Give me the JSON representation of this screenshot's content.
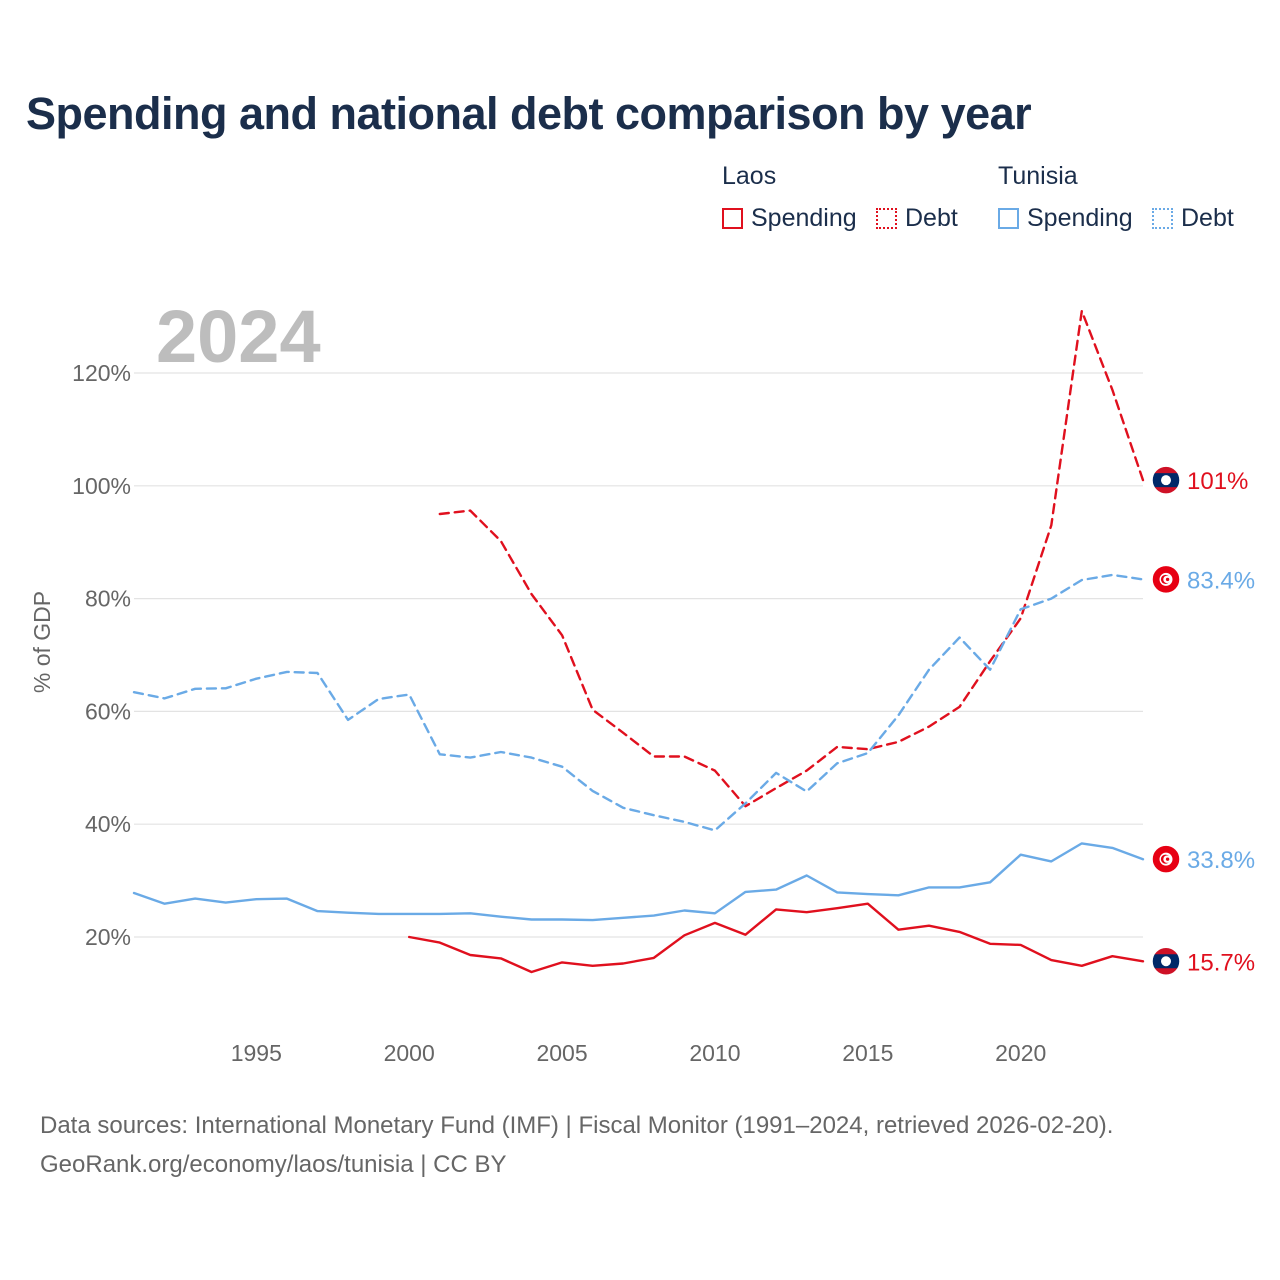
{
  "title": "Spending and national debt comparison by year",
  "legend": {
    "groups": [
      {
        "name": "Laos",
        "color": "#e0101e",
        "items": [
          "Spending",
          "Debt"
        ]
      },
      {
        "name": "Tunisia",
        "color": "#6aaae6",
        "items": [
          "Spending",
          "Debt"
        ]
      }
    ]
  },
  "year_watermark": "2024",
  "footer": {
    "sources": "Data sources: International Monetary Fund (IMF) | Fiscal Monitor (1991–2024, retrieved 2026-02-20).",
    "credit": "GeoRank.org/economy/laos/tunisia | CC BY"
  },
  "chart_data": {
    "type": "line",
    "title": "Spending and national debt comparison by year",
    "ylabel": "% of GDP",
    "xlabel": "",
    "xlim": [
      1991,
      2024
    ],
    "ylim": [
      0,
      130
    ],
    "x_ticks": [
      1995,
      2000,
      2005,
      2010,
      2015,
      2020
    ],
    "y_ticks": [
      20,
      40,
      60,
      80,
      100,
      120
    ],
    "y_tick_labels": [
      "20%",
      "40%",
      "60%",
      "80%",
      "100%",
      "120%"
    ],
    "grid": true,
    "series": [
      {
        "name": "Laos Debt",
        "country": "Laos",
        "metric": "Debt",
        "color": "#e0101e",
        "dashed": true,
        "x": [
          2001,
          2002,
          2003,
          2004,
          2005,
          2006,
          2007,
          2008,
          2009,
          2010,
          2011,
          2012,
          2013,
          2014,
          2015,
          2016,
          2017,
          2018,
          2019,
          2020,
          2021,
          2022,
          2023,
          2024
        ],
        "y": [
          95.0,
          95.6,
          90.2,
          80.8,
          73.5,
          60.3,
          56.2,
          52.0,
          52.0,
          49.5,
          43.2,
          46.4,
          49.5,
          53.7,
          53.3,
          54.6,
          57.3,
          60.8,
          68.9,
          76.5,
          93.0,
          131.0,
          117.0,
          101.0
        ],
        "end_label": "101%"
      },
      {
        "name": "Tunisia Debt",
        "country": "Tunisia",
        "metric": "Debt",
        "color": "#6aaae6",
        "dashed": true,
        "x": [
          1991,
          1992,
          1993,
          1994,
          1995,
          1996,
          1997,
          1998,
          1999,
          2000,
          2001,
          2002,
          2003,
          2004,
          2005,
          2006,
          2007,
          2008,
          2009,
          2010,
          2011,
          2012,
          2013,
          2014,
          2015,
          2016,
          2017,
          2018,
          2019,
          2020,
          2021,
          2022,
          2023,
          2024
        ],
        "y": [
          63.4,
          62.3,
          64.0,
          64.1,
          65.8,
          67.0,
          66.8,
          58.5,
          62.2,
          63.0,
          52.4,
          51.8,
          52.8,
          51.8,
          50.2,
          45.9,
          42.9,
          41.6,
          40.4,
          38.9,
          43.7,
          49.1,
          45.8,
          50.8,
          52.6,
          59.3,
          67.4,
          73.1,
          67.4,
          78.1,
          80.0,
          83.3,
          84.2,
          83.4
        ],
        "end_label": "83.4%"
      },
      {
        "name": "Tunisia Spending",
        "country": "Tunisia",
        "metric": "Spending",
        "color": "#6aaae6",
        "dashed": false,
        "x": [
          1991,
          1992,
          1993,
          1994,
          1995,
          1996,
          1997,
          1998,
          1999,
          2000,
          2001,
          2002,
          2003,
          2004,
          2005,
          2006,
          2007,
          2008,
          2009,
          2010,
          2011,
          2012,
          2013,
          2014,
          2015,
          2016,
          2017,
          2018,
          2019,
          2020,
          2021,
          2022,
          2023,
          2024
        ],
        "y": [
          27.8,
          25.9,
          26.8,
          26.1,
          26.7,
          26.8,
          24.6,
          24.3,
          24.1,
          24.1,
          24.1,
          24.2,
          23.6,
          23.1,
          23.1,
          23.0,
          23.4,
          23.8,
          24.7,
          24.2,
          28.0,
          28.4,
          30.9,
          27.9,
          27.6,
          27.4,
          28.8,
          28.8,
          29.7,
          34.6,
          33.4,
          36.6,
          35.8,
          33.8
        ],
        "end_label": "33.8%"
      },
      {
        "name": "Laos Spending",
        "country": "Laos",
        "metric": "Spending",
        "color": "#e0101e",
        "dashed": false,
        "x": [
          2000,
          2001,
          2002,
          2003,
          2004,
          2005,
          2006,
          2007,
          2008,
          2009,
          2010,
          2011,
          2012,
          2013,
          2014,
          2015,
          2016,
          2017,
          2018,
          2019,
          2020,
          2021,
          2022,
          2023,
          2024
        ],
        "y": [
          20.0,
          19.0,
          16.8,
          16.2,
          13.8,
          15.5,
          14.9,
          15.3,
          16.3,
          20.3,
          22.5,
          20.4,
          24.9,
          24.4,
          25.1,
          25.9,
          21.3,
          22.0,
          20.9,
          18.8,
          18.6,
          15.9,
          14.9,
          16.6,
          15.7
        ],
        "end_label": "15.7%"
      }
    ]
  }
}
